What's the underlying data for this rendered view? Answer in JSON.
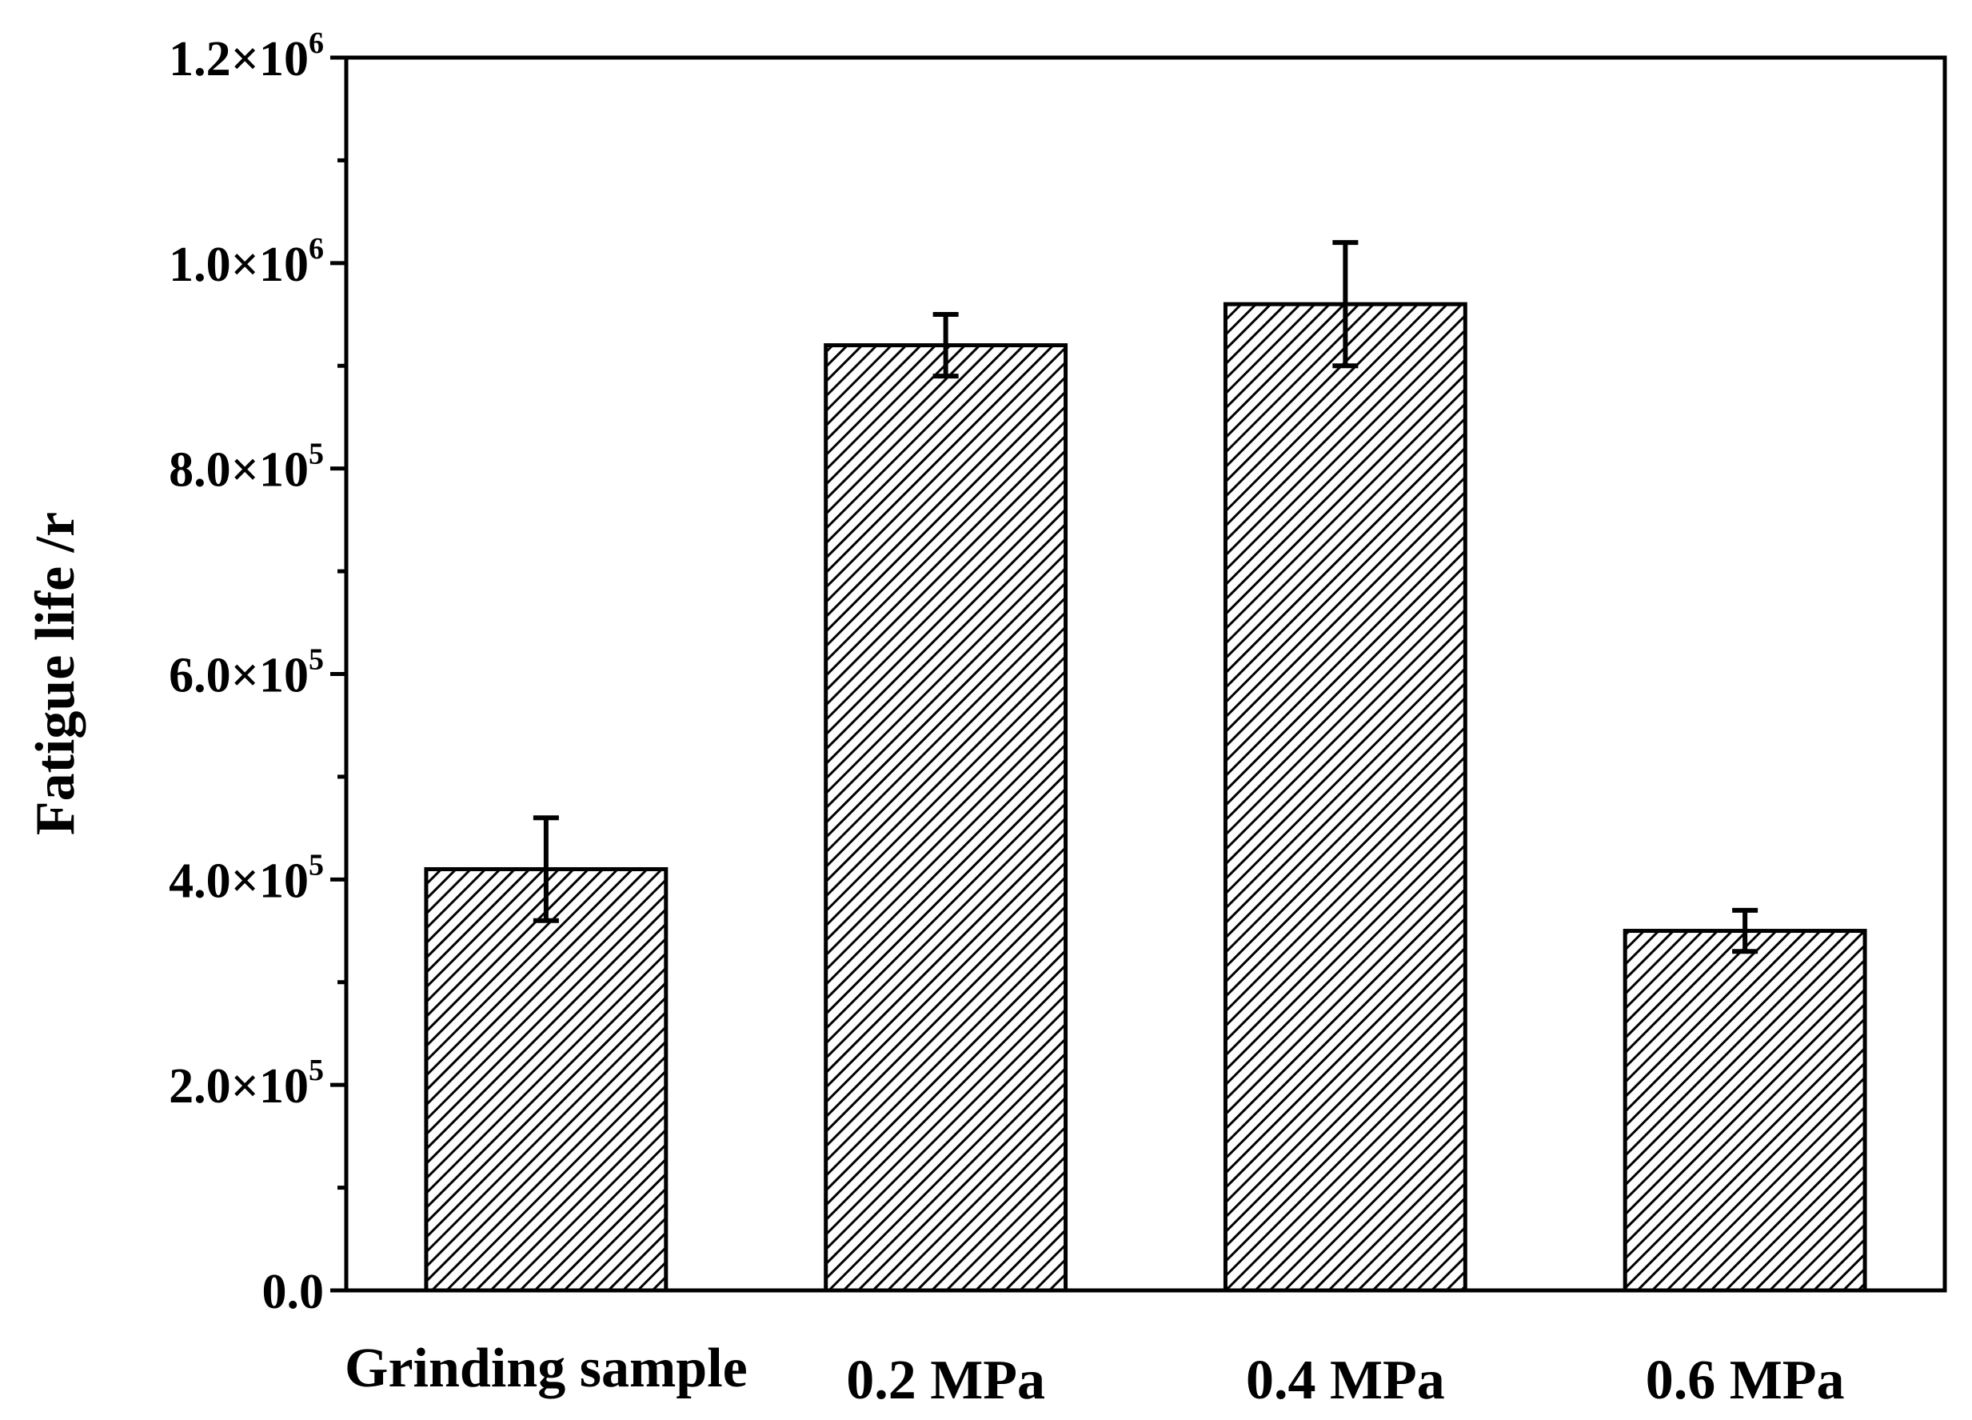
{
  "chart_data": {
    "type": "bar",
    "title": "",
    "xlabel": "",
    "ylabel": "Fatigue life /r",
    "categories": [
      "Grinding sample",
      "0.2 MPa",
      "0.4 MPa",
      "0.6 MPa"
    ],
    "values": [
      410000,
      920000,
      960000,
      350000
    ],
    "errors": [
      50000,
      30000,
      60000,
      20000
    ],
    "ylim": [
      0,
      1200000
    ],
    "yticks": [
      {
        "value": 0,
        "mantissa": "0.0",
        "exp": ""
      },
      {
        "value": 200000,
        "mantissa": "2.0×10",
        "exp": "5"
      },
      {
        "value": 400000,
        "mantissa": "4.0×10",
        "exp": "5"
      },
      {
        "value": 600000,
        "mantissa": "6.0×10",
        "exp": "5"
      },
      {
        "value": 800000,
        "mantissa": "8.0×10",
        "exp": "5"
      },
      {
        "value": 1000000,
        "mantissa": "1.0×10",
        "exp": "6"
      },
      {
        "value": 1200000,
        "mantissa": "1.2×10",
        "exp": "6"
      }
    ],
    "minor_step": 100000,
    "bar_pattern": "diagonal-hatch",
    "bar_color": "#ffffff",
    "edge_color": "#000000",
    "grid": false,
    "legend": "none"
  }
}
